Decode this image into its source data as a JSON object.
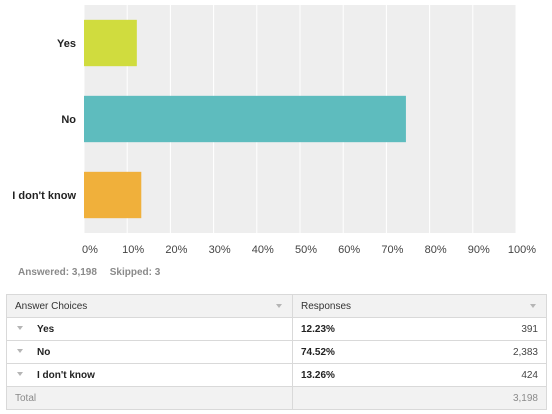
{
  "chart_data": {
    "type": "bar",
    "orientation": "horizontal",
    "categories": [
      "Yes",
      "No",
      "I don't know"
    ],
    "values": [
      12.23,
      74.52,
      13.26
    ],
    "colors": [
      "#d0dc3e",
      "#5ebcbe",
      "#f0b03b"
    ],
    "xlim": [
      0,
      100
    ],
    "x_ticks": [
      "0%",
      "10%",
      "20%",
      "30%",
      "40%",
      "50%",
      "60%",
      "70%",
      "80%",
      "90%",
      "100%"
    ],
    "grid": true
  },
  "summary": {
    "answered": "Answered: 3,198",
    "skipped": "Skipped: 3"
  },
  "table": {
    "headers": [
      "Answer Choices",
      "Responses"
    ],
    "rows": [
      {
        "choice": "Yes",
        "percent": "12.23%",
        "count": "391"
      },
      {
        "choice": "No",
        "percent": "74.52%",
        "count": "2,383"
      },
      {
        "choice": "I don't know",
        "percent": "13.26%",
        "count": "424"
      }
    ],
    "total_label": "Total",
    "total_value": "3,198"
  }
}
